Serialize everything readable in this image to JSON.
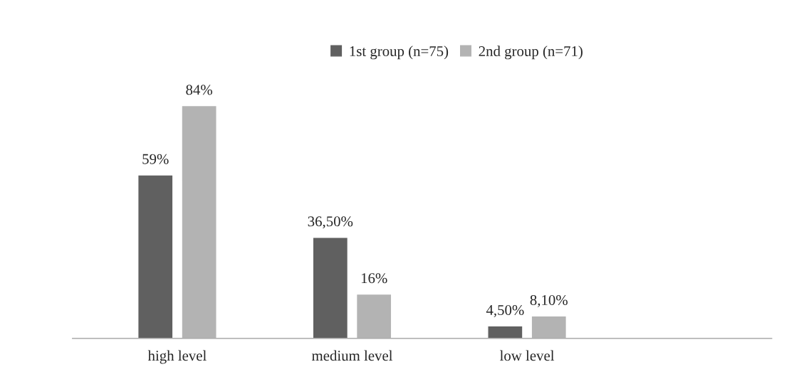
{
  "chart_data": {
    "type": "bar",
    "categories": [
      "high level",
      "medium level",
      "low level",
      null
    ],
    "series": [
      {
        "name": "1st group (n=75)",
        "color": "#606060",
        "values": [
          59,
          36.5,
          4.5,
          null
        ],
        "value_labels": [
          "59%",
          "36,50%",
          "4,50%",
          null
        ]
      },
      {
        "name": "2nd group (n=71)",
        "color": "#b3b3b3",
        "values": [
          84,
          16,
          8.1,
          null
        ],
        "value_labels": [
          "84%",
          "16%",
          "8,10%",
          null
        ]
      }
    ],
    "legend": "top",
    "grid": false,
    "tick_labels": "x"
  }
}
